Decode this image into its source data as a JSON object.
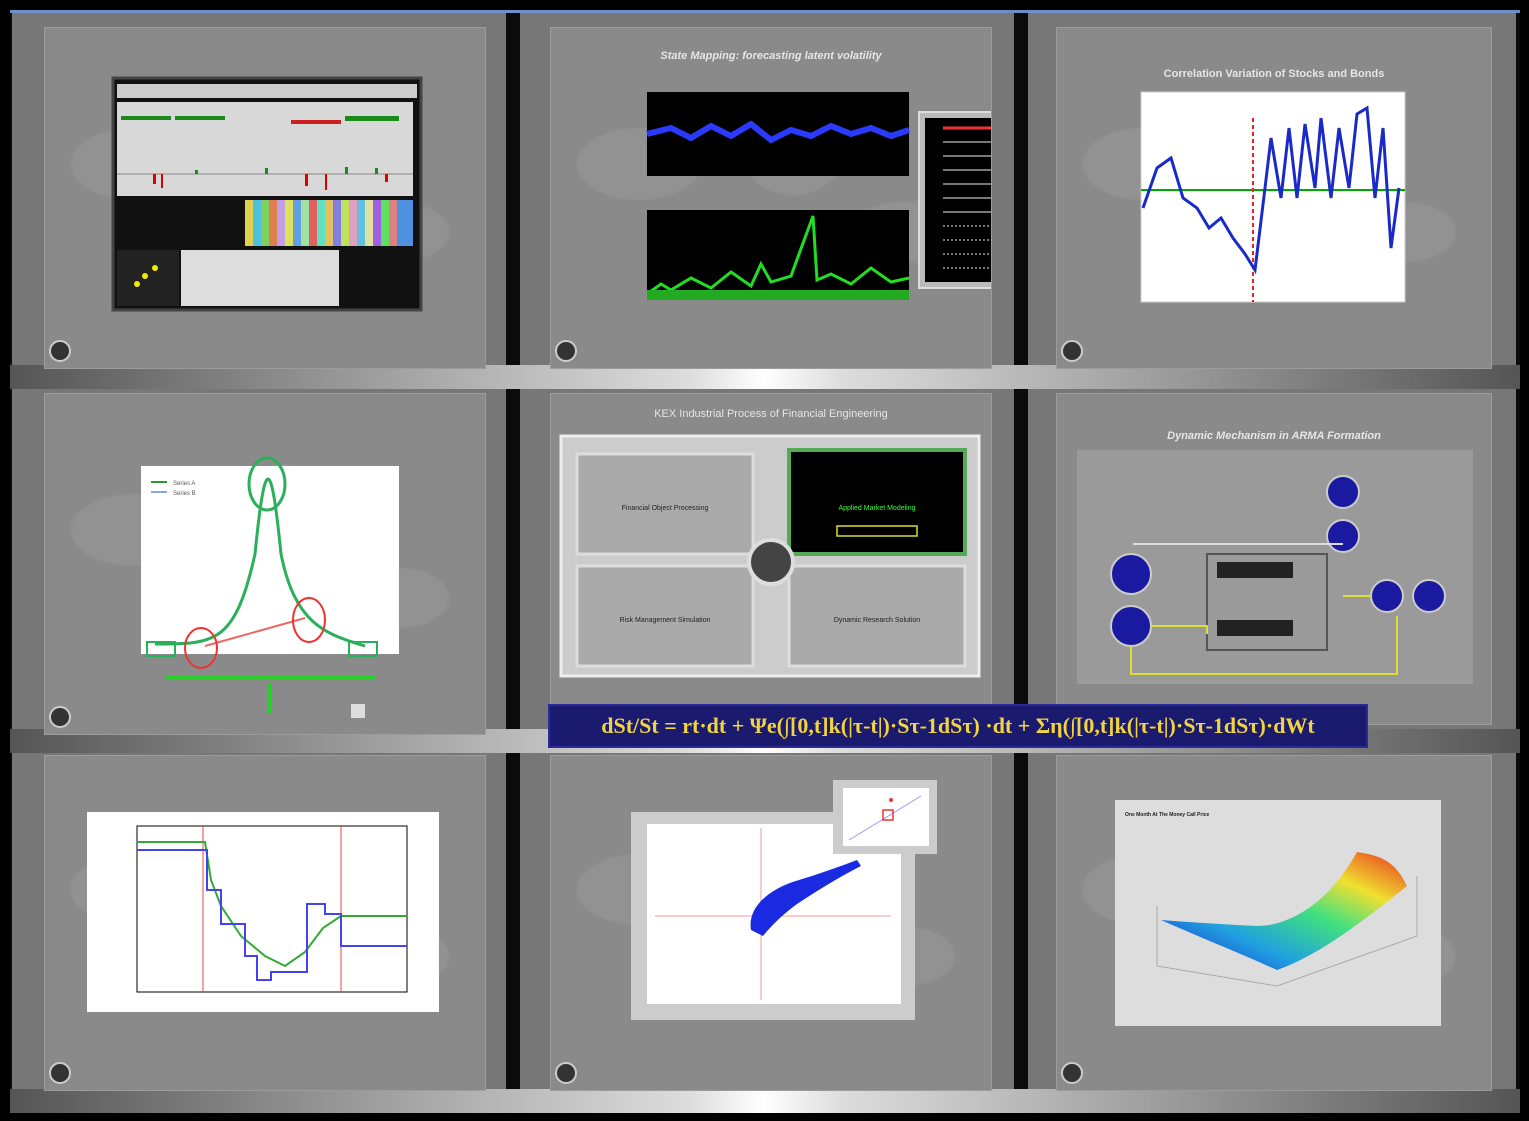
{
  "slides": {
    "s2_title": "State Mapping: forecasting latent volatility",
    "s3_title": "Correlation Variation of Stocks and Bonds",
    "s4_legend": [
      "Series A",
      "Series B"
    ],
    "s5_title": "KEX Industrial Process of Financial Engineering",
    "s5_boxes": [
      "Financial Object Processing",
      "Applied Market Modeling",
      "Risk Management Simulation",
      "Dynamic Research Solution"
    ],
    "s6_title": "Dynamic Mechanism in ARMA Formation",
    "s9_title": "One Month At The Money Call Price"
  },
  "formula": {
    "text": "dSt/St = rt·dt + Ψe(∫[0,t]k(|τ-t|)·Sτ-1dSτ) ·dt + Ση(∫[0,t]k(|τ-t|)·Sτ-1dSτ)·dWt"
  },
  "colors": {
    "formula_bg": "#1a1a6e",
    "formula_text": "#f2d440",
    "accent_blue": "#1a1aa0",
    "accent_green": "#2fd12f"
  }
}
